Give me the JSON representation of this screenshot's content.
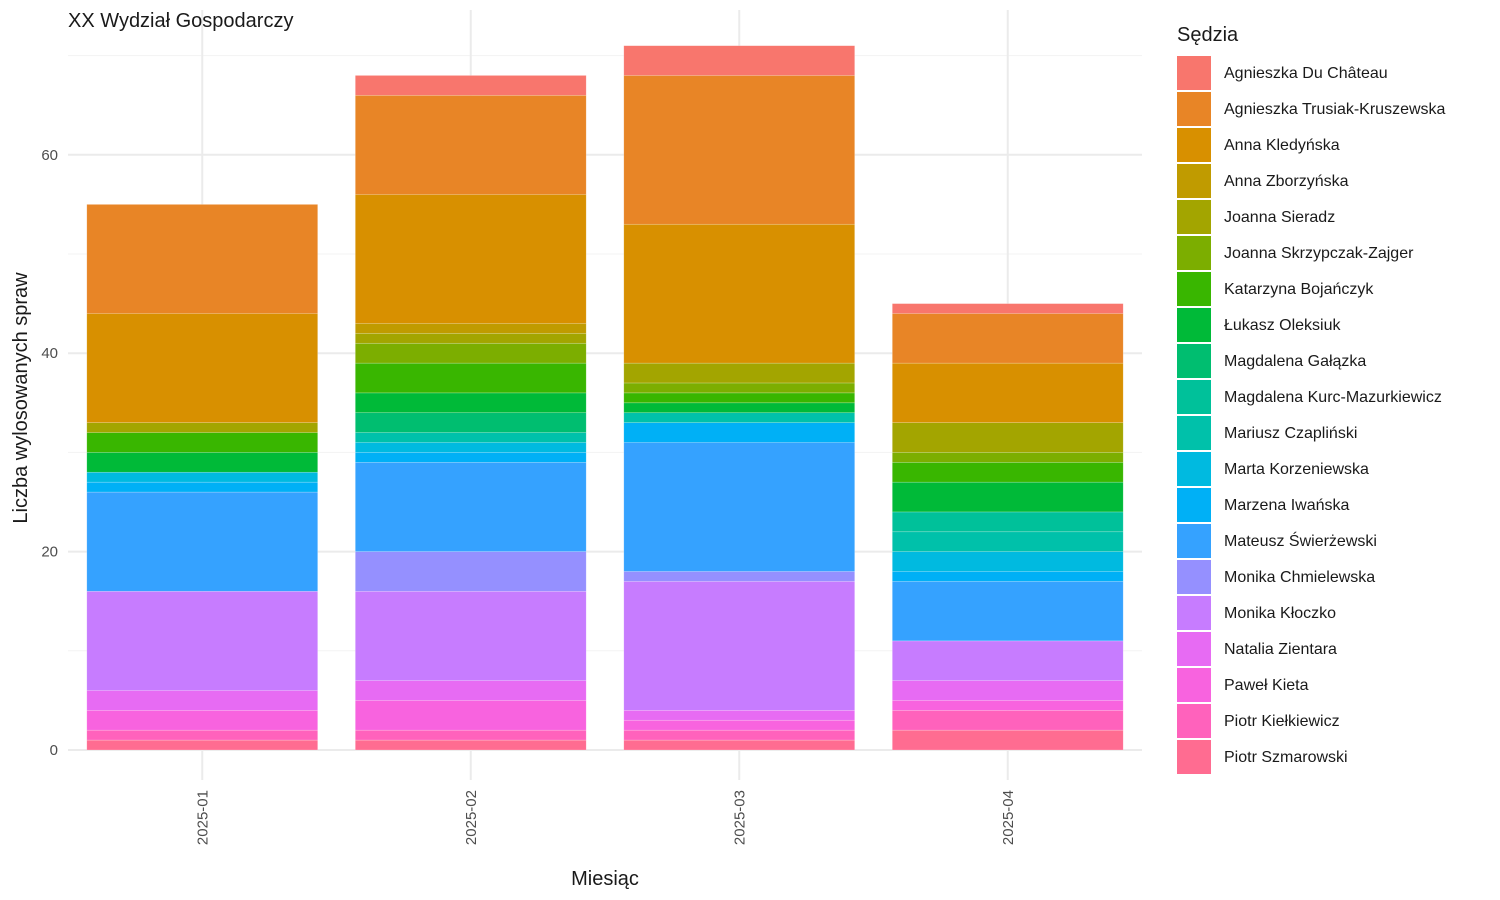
{
  "chart_data": {
    "type": "bar",
    "stacked": true,
    "title": "XX Wydział Gospodarczy",
    "xlabel": "Miesiąc",
    "ylabel": "Liczba wylosowanych spraw",
    "ylim": [
      0,
      72
    ],
    "yticks": [
      0,
      20,
      40,
      60
    ],
    "grid": true,
    "legend_title": "Sędzia",
    "legend_position": "right",
    "categories": [
      "2025-01",
      "2025-02",
      "2025-03",
      "2025-04"
    ],
    "series": [
      {
        "name": "Piotr Szmarowski",
        "color": "#FF6C91",
        "values": [
          1,
          1,
          1,
          2
        ]
      },
      {
        "name": "Piotr Kiełkiewicz",
        "color": "#FF62BC",
        "values": [
          1,
          1,
          1,
          2
        ]
      },
      {
        "name": "Paweł Kieta",
        "color": "#F863DF",
        "values": [
          2,
          3,
          1,
          1
        ]
      },
      {
        "name": "Natalia Zientara",
        "color": "#E76BF3",
        "values": [
          2,
          2,
          1,
          2
        ]
      },
      {
        "name": "Monika Kłoczko",
        "color": "#C77CFF",
        "values": [
          10,
          9,
          13,
          4
        ]
      },
      {
        "name": "Monika Chmielewska",
        "color": "#9590FF",
        "values": [
          0,
          4,
          1,
          0
        ]
      },
      {
        "name": "Mateusz Świerżewski",
        "color": "#35A2FF",
        "values": [
          10,
          9,
          13,
          6
        ]
      },
      {
        "name": "Marzena Iwańska",
        "color": "#00B0F6",
        "values": [
          1,
          1,
          2,
          1
        ]
      },
      {
        "name": "Marta Korzeniewska",
        "color": "#00BAE0",
        "values": [
          1,
          1,
          0,
          2
        ]
      },
      {
        "name": "Mariusz Czapliński",
        "color": "#00C1AA",
        "values": [
          0,
          1,
          1,
          2
        ]
      },
      {
        "name": "Magdalena Kurc-Mazurkiewicz",
        "color": "#00C19A",
        "values": [
          0,
          0,
          0,
          2
        ]
      },
      {
        "name": "Magdalena Gałązka",
        "color": "#00BE70",
        "values": [
          0,
          2,
          0,
          0
        ]
      },
      {
        "name": "Łukasz Oleksiuk",
        "color": "#00BA38",
        "values": [
          2,
          2,
          1,
          3
        ]
      },
      {
        "name": "Katarzyna Bojańczyk",
        "color": "#39B600",
        "values": [
          2,
          3,
          1,
          2
        ]
      },
      {
        "name": "Joanna Skrzypczak-Zajger",
        "color": "#7CAE00",
        "values": [
          0,
          2,
          1,
          1
        ]
      },
      {
        "name": "Joanna Sieradz",
        "color": "#A3A500",
        "values": [
          1,
          1,
          2,
          3
        ]
      },
      {
        "name": "Anna Zborzyńska",
        "color": "#C09B00",
        "values": [
          0,
          1,
          0,
          0
        ]
      },
      {
        "name": "Anna Kledyńska",
        "color": "#D89000",
        "values": [
          11,
          13,
          14,
          6
        ]
      },
      {
        "name": "Agnieszka Trusiak-Kruszewska",
        "color": "#E88526",
        "values": [
          11,
          10,
          15,
          5
        ]
      },
      {
        "name": "Agnieszka Du Château",
        "color": "#F8766D",
        "values": [
          0,
          2,
          3,
          1
        ]
      }
    ]
  }
}
